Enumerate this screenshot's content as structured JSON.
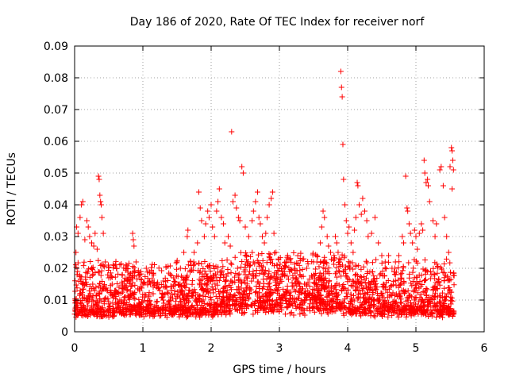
{
  "chart_data": {
    "type": "scatter",
    "title": "Day 186 of 2020, Rate Of TEC Index for receiver norf",
    "xlabel": "GPS time / hours",
    "ylabel": "ROTI / TECUs",
    "xlim": [
      0,
      6
    ],
    "ylim": [
      0,
      0.09
    ],
    "xticks": [
      0,
      1,
      2,
      3,
      4,
      5,
      6
    ],
    "xtick_labels": [
      "0",
      "1",
      "2",
      "3",
      "4",
      "5",
      "6"
    ],
    "yticks": [
      0,
      0.01,
      0.02,
      0.03,
      0.04,
      0.05,
      0.06,
      0.07,
      0.08,
      0.09
    ],
    "ytick_labels": [
      "0",
      "0.01",
      "0.02",
      "0.03",
      "0.04",
      "0.05",
      "0.06",
      "0.07",
      "0.08",
      "0.09"
    ],
    "grid": true,
    "marker": "+",
    "color": "#ff0000",
    "series": [
      {
        "name": "ROTI",
        "points": [
          [
            0.02,
            0.025
          ],
          [
            0.03,
            0.033
          ],
          [
            0.05,
            0.031
          ],
          [
            0.08,
            0.036
          ],
          [
            0.1,
            0.04
          ],
          [
            0.12,
            0.041
          ],
          [
            0.15,
            0.029
          ],
          [
            0.18,
            0.035
          ],
          [
            0.2,
            0.033
          ],
          [
            0.22,
            0.03
          ],
          [
            0.25,
            0.028
          ],
          [
            0.28,
            0.027
          ],
          [
            0.3,
            0.031
          ],
          [
            0.33,
            0.026
          ],
          [
            0.35,
            0.049
          ],
          [
            0.36,
            0.048
          ],
          [
            0.37,
            0.043
          ],
          [
            0.38,
            0.041
          ],
          [
            0.39,
            0.04
          ],
          [
            0.4,
            0.036
          ],
          [
            0.42,
            0.031
          ],
          [
            0.45,
            0.022
          ],
          [
            0.5,
            0.017
          ],
          [
            0.55,
            0.015
          ],
          [
            0.6,
            0.013
          ],
          [
            0.65,
            0.014
          ],
          [
            0.7,
            0.018
          ],
          [
            0.75,
            0.02
          ],
          [
            0.8,
            0.016
          ],
          [
            0.85,
            0.031
          ],
          [
            0.86,
            0.029
          ],
          [
            0.87,
            0.027
          ],
          [
            0.9,
            0.022
          ],
          [
            0.95,
            0.018
          ],
          [
            1.0,
            0.015
          ],
          [
            1.05,
            0.02
          ],
          [
            1.1,
            0.016
          ],
          [
            1.15,
            0.012
          ],
          [
            1.2,
            0.014
          ],
          [
            1.25,
            0.013
          ],
          [
            1.3,
            0.016
          ],
          [
            1.35,
            0.014
          ],
          [
            1.4,
            0.018
          ],
          [
            1.45,
            0.017
          ],
          [
            1.5,
            0.022
          ],
          [
            1.55,
            0.02
          ],
          [
            1.6,
            0.025
          ],
          [
            1.65,
            0.03
          ],
          [
            1.66,
            0.032
          ],
          [
            1.7,
            0.022
          ],
          [
            1.75,
            0.025
          ],
          [
            1.8,
            0.028
          ],
          [
            1.82,
            0.044
          ],
          [
            1.84,
            0.039
          ],
          [
            1.86,
            0.035
          ],
          [
            1.9,
            0.03
          ],
          [
            1.92,
            0.034
          ],
          [
            1.95,
            0.038
          ],
          [
            1.97,
            0.036
          ],
          [
            2.0,
            0.04
          ],
          [
            2.02,
            0.033
          ],
          [
            2.05,
            0.03
          ],
          [
            2.08,
            0.038
          ],
          [
            2.1,
            0.041
          ],
          [
            2.12,
            0.045
          ],
          [
            2.15,
            0.036
          ],
          [
            2.18,
            0.034
          ],
          [
            2.2,
            0.028
          ],
          [
            2.25,
            0.03
          ],
          [
            2.28,
            0.027
          ],
          [
            2.3,
            0.063
          ],
          [
            2.32,
            0.041
          ],
          [
            2.35,
            0.043
          ],
          [
            2.37,
            0.039
          ],
          [
            2.4,
            0.036
          ],
          [
            2.42,
            0.035
          ],
          [
            2.45,
            0.052
          ],
          [
            2.47,
            0.05
          ],
          [
            2.5,
            0.033
          ],
          [
            2.55,
            0.03
          ],
          [
            2.6,
            0.035
          ],
          [
            2.62,
            0.038
          ],
          [
            2.65,
            0.041
          ],
          [
            2.68,
            0.044
          ],
          [
            2.7,
            0.036
          ],
          [
            2.72,
            0.034
          ],
          [
            2.75,
            0.03
          ],
          [
            2.78,
            0.028
          ],
          [
            2.8,
            0.031
          ],
          [
            2.82,
            0.036
          ],
          [
            2.85,
            0.04
          ],
          [
            2.88,
            0.042
          ],
          [
            2.9,
            0.044
          ],
          [
            2.92,
            0.031
          ],
          [
            2.95,
            0.025
          ],
          [
            3.0,
            0.02
          ],
          [
            3.05,
            0.018
          ],
          [
            3.1,
            0.022
          ],
          [
            3.15,
            0.019
          ],
          [
            3.2,
            0.017
          ],
          [
            3.3,
            0.018
          ],
          [
            3.4,
            0.02
          ],
          [
            3.5,
            0.022
          ],
          [
            3.55,
            0.024
          ],
          [
            3.6,
            0.028
          ],
          [
            3.62,
            0.033
          ],
          [
            3.64,
            0.038
          ],
          [
            3.66,
            0.036
          ],
          [
            3.7,
            0.03
          ],
          [
            3.72,
            0.027
          ],
          [
            3.75,
            0.025
          ],
          [
            3.8,
            0.024
          ],
          [
            3.82,
            0.03
          ],
          [
            3.84,
            0.028
          ],
          [
            3.86,
            0.025
          ],
          [
            3.88,
            0.022
          ],
          [
            3.9,
            0.082
          ],
          [
            3.91,
            0.077
          ],
          [
            3.92,
            0.074
          ],
          [
            3.93,
            0.059
          ],
          [
            3.94,
            0.048
          ],
          [
            3.96,
            0.04
          ],
          [
            3.98,
            0.035
          ],
          [
            4.0,
            0.031
          ],
          [
            4.02,
            0.033
          ],
          [
            4.05,
            0.028
          ],
          [
            4.08,
            0.025
          ],
          [
            4.1,
            0.032
          ],
          [
            4.12,
            0.036
          ],
          [
            4.14,
            0.047
          ],
          [
            4.15,
            0.046
          ],
          [
            4.17,
            0.04
          ],
          [
            4.2,
            0.037
          ],
          [
            4.22,
            0.042
          ],
          [
            4.25,
            0.038
          ],
          [
            4.28,
            0.035
          ],
          [
            4.3,
            0.03
          ],
          [
            4.35,
            0.031
          ],
          [
            4.4,
            0.036
          ],
          [
            4.45,
            0.028
          ],
          [
            4.5,
            0.024
          ],
          [
            4.55,
            0.022
          ],
          [
            4.6,
            0.024
          ],
          [
            4.65,
            0.02
          ],
          [
            4.7,
            0.022
          ],
          [
            4.75,
            0.024
          ],
          [
            4.8,
            0.03
          ],
          [
            4.82,
            0.028
          ],
          [
            4.85,
            0.049
          ],
          [
            4.87,
            0.039
          ],
          [
            4.88,
            0.038
          ],
          [
            4.9,
            0.034
          ],
          [
            4.92,
            0.031
          ],
          [
            4.95,
            0.028
          ],
          [
            4.98,
            0.032
          ],
          [
            5.0,
            0.03
          ],
          [
            5.02,
            0.026
          ],
          [
            5.05,
            0.031
          ],
          [
            5.08,
            0.034
          ],
          [
            5.1,
            0.032
          ],
          [
            5.12,
            0.054
          ],
          [
            5.13,
            0.05
          ],
          [
            5.15,
            0.047
          ],
          [
            5.17,
            0.048
          ],
          [
            5.18,
            0.046
          ],
          [
            5.2,
            0.041
          ],
          [
            5.25,
            0.035
          ],
          [
            5.28,
            0.03
          ],
          [
            5.3,
            0.034
          ],
          [
            5.35,
            0.051
          ],
          [
            5.37,
            0.052
          ],
          [
            5.4,
            0.046
          ],
          [
            5.42,
            0.036
          ],
          [
            5.45,
            0.03
          ],
          [
            5.48,
            0.025
          ],
          [
            5.5,
            0.052
          ],
          [
            5.52,
            0.058
          ],
          [
            5.53,
            0.057
          ],
          [
            5.54,
            0.054
          ],
          [
            5.55,
            0.051
          ],
          [
            5.53,
            0.045
          ]
        ]
      }
    ]
  }
}
